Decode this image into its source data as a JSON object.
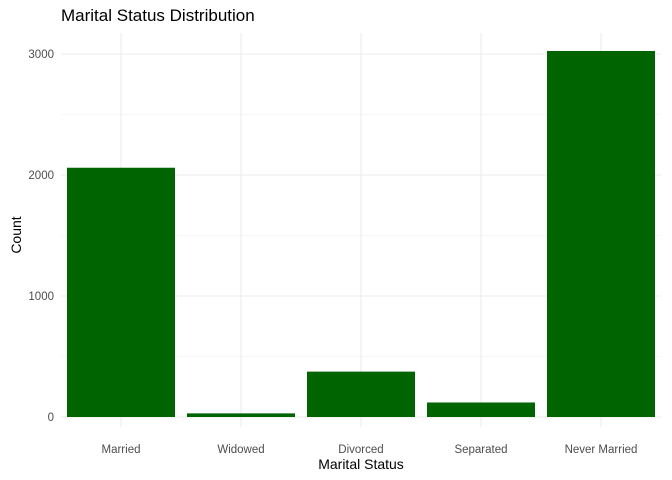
{
  "chart_data": {
    "type": "bar",
    "title": "Marital Status Distribution",
    "xlabel": "Marital Status",
    "ylabel": "Count",
    "categories": [
      "Married",
      "Widowed",
      "Divorced",
      "Separated",
      "Never Married"
    ],
    "values": [
      2060,
      30,
      375,
      120,
      3025
    ],
    "ylim": [
      0,
      3200
    ],
    "yticks": [
      0,
      1000,
      2000,
      3000
    ],
    "grid": true,
    "legend": "none",
    "colors": {
      "bar": "#006400",
      "grid_major": "#ebebeb",
      "grid_minor": "#f4f4f4",
      "tick_label": "#4d4d4d"
    }
  }
}
